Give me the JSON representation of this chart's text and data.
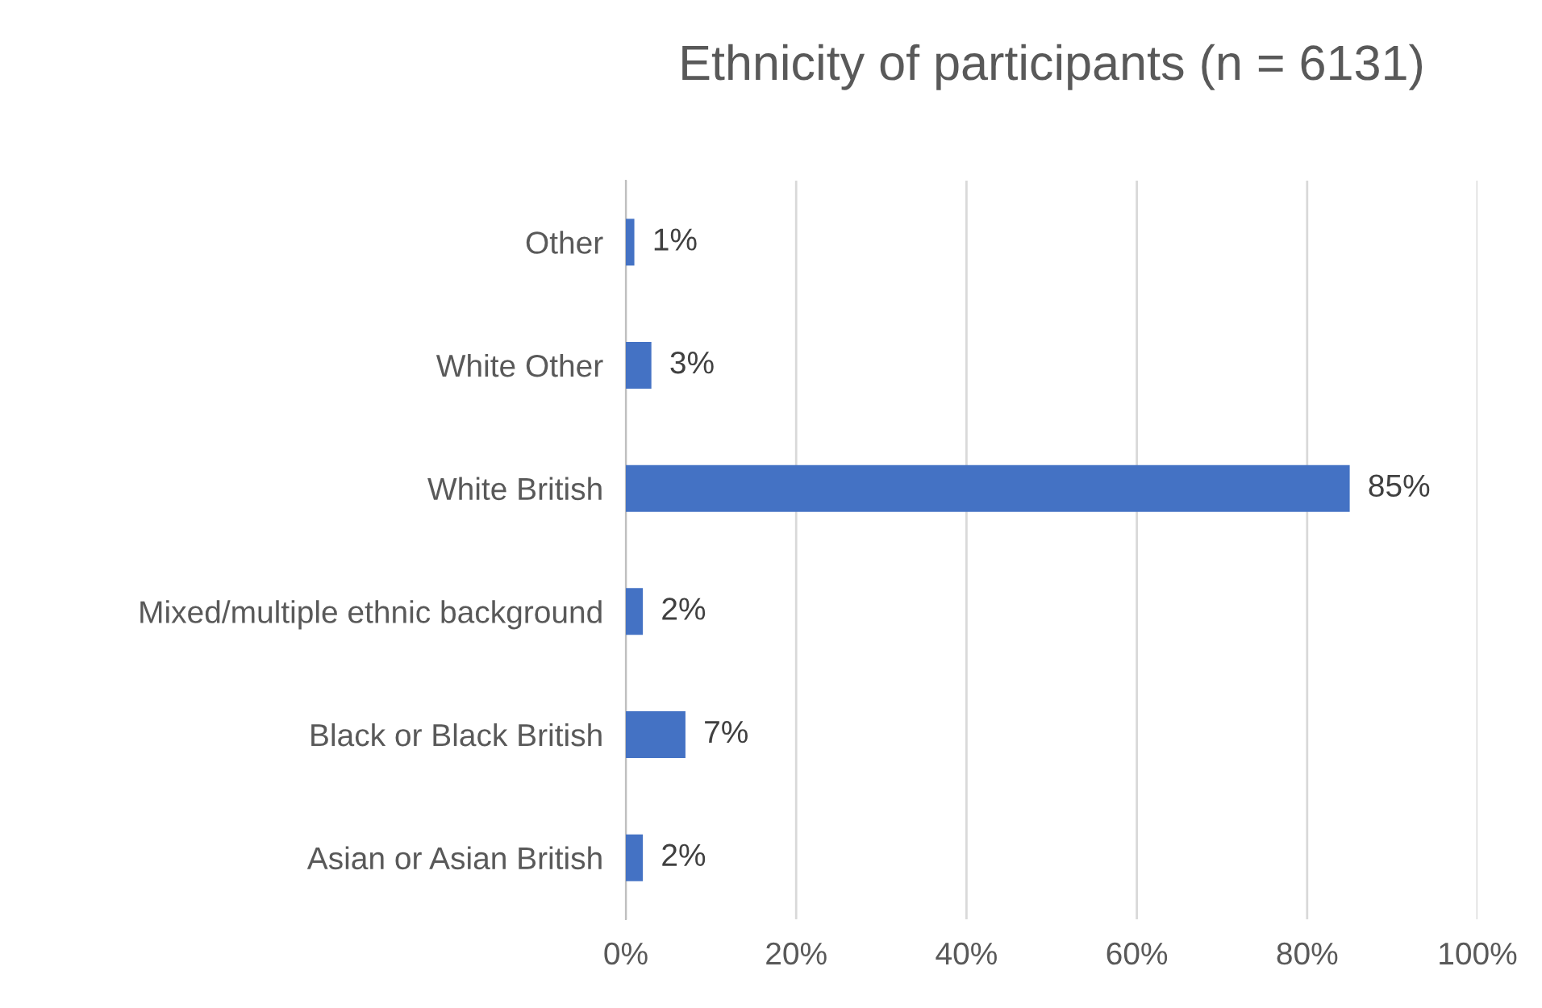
{
  "chart_data": {
    "type": "bar",
    "orientation": "horizontal",
    "title": "Ethnicity of participants (n = 6131)",
    "categories": [
      "Other",
      "White Other",
      "White British",
      "Mixed/multiple ethnic background",
      "Black or Black British",
      "Asian or Asian British"
    ],
    "values": [
      1,
      3,
      85,
      2,
      7,
      2
    ],
    "value_labels": [
      "1%",
      "3%",
      "85%",
      "2%",
      "7%",
      "2%"
    ],
    "color": "#4472c4",
    "xlim": [
      0,
      100
    ],
    "xticks": [
      {
        "value": 0,
        "label": "0%"
      },
      {
        "value": 20,
        "label": "20%"
      },
      {
        "value": 40,
        "label": "40%"
      },
      {
        "value": 60,
        "label": "60%"
      },
      {
        "value": 80,
        "label": "80%"
      },
      {
        "value": 100,
        "label": "100%"
      }
    ],
    "grid": "x"
  }
}
